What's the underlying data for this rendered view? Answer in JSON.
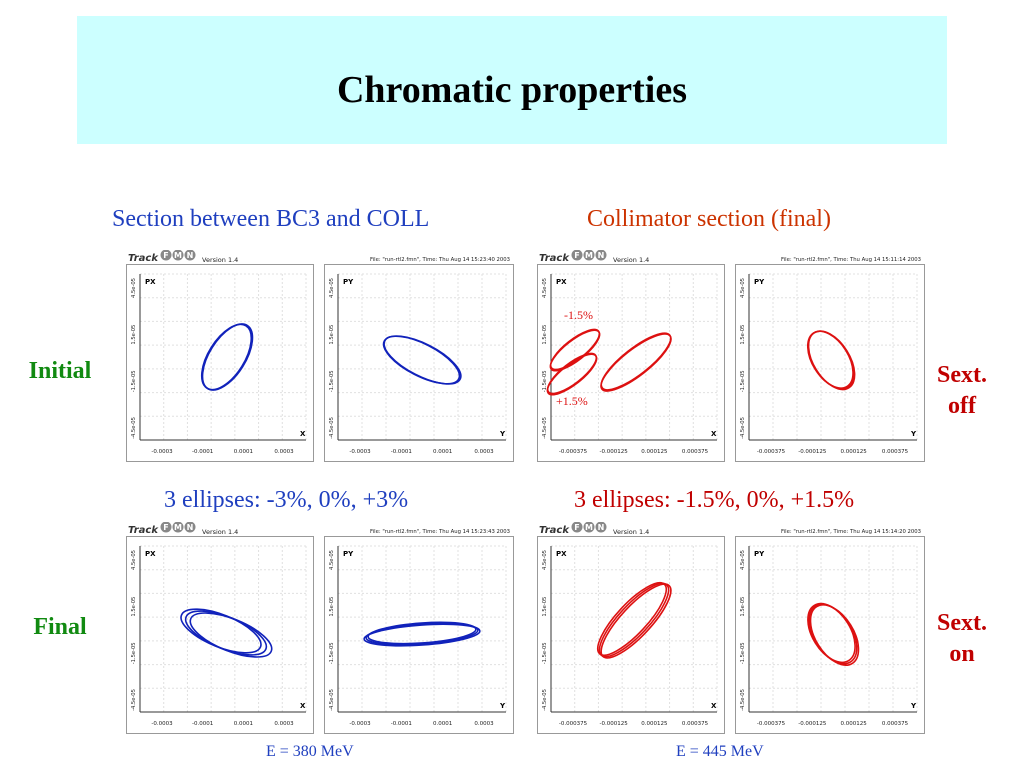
{
  "slide": {
    "title": "Chromatic properties",
    "left_heading": "Section between BC3 and COLL",
    "right_heading": "Collimator section (final)",
    "left_mid": "3 ellipses: -3%, 0%, +3%",
    "right_mid": "3 ellipses: -1.5%, 0%, +1.5%",
    "row_initial": "Initial",
    "row_final": "Final",
    "sext_off_1": "Sext.",
    "sext_off_2": "off",
    "sext_on_1": "Sext.",
    "sext_on_2": "on",
    "energy_left": "E = 380 MeV",
    "energy_right": "E = 445 MeV",
    "anno_minus": "-1.5%",
    "anno_plus": "+1.5%"
  },
  "colors": {
    "title_bg": "#ccffff",
    "blue_heading": "#1f3fbf",
    "orange_heading": "#cc3300",
    "red_label": "#c00000",
    "green_label": "#118a11",
    "blue_ellipse": "#1122bb",
    "red_ellipse": "#dd1111"
  },
  "plots": {
    "logo_track": "Track",
    "logo_letters": [
      "F",
      "M",
      "N"
    ],
    "version": "Version 1.4",
    "px": "PX",
    "py": "PY",
    "x": "X",
    "y": "Y",
    "yticks": [
      "-4.5e-05",
      "-1.5e-05",
      "1.5e-05",
      "4.5e-05"
    ],
    "xticks_left": [
      "-0.0003",
      "-0.0001",
      "0.0001",
      "0.0003"
    ],
    "xticks_right": [
      "-0.000375",
      "-0.000125",
      "0.000125",
      "0.000375"
    ],
    "file_tl": "File: \"run-rtl2.fmn\", Time: Thu Aug 14 15:23:40 2003",
    "file_tr": "File: \"run-rtl2.fmn\", Time: Thu Aug 14 15:11:14 2003",
    "file_bl": "File: \"run-rtl2.fmn\", Time: Thu Aug 14 15:23:43 2003",
    "file_br": "File: \"run-rtl2.fmn\", Time: Thu Aug 14 15:14:20 2003"
  }
}
